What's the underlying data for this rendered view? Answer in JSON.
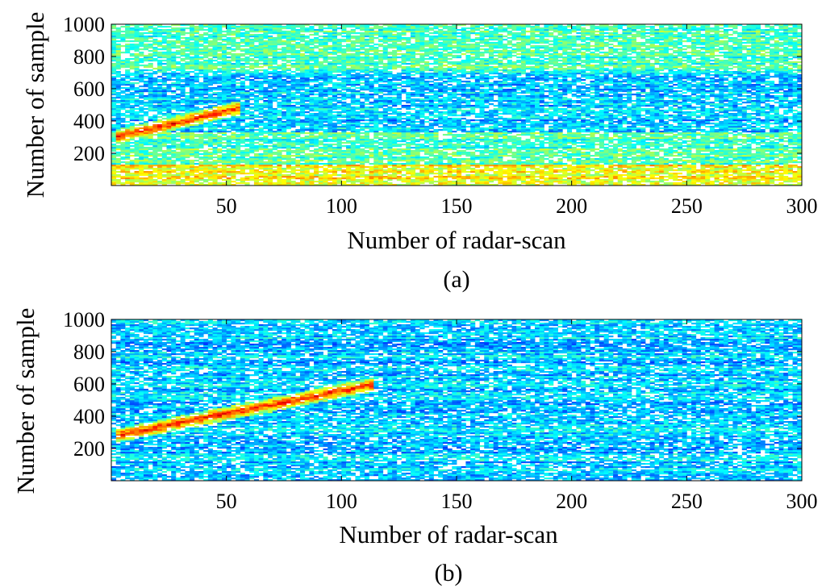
{
  "chart_data": [
    {
      "type": "heatmap",
      "panel": "(a)",
      "caption": "(a)",
      "xlabel": "Number of radar-scan",
      "ylabel": "Number of sample",
      "xlim": [
        0,
        300
      ],
      "ylim": [
        0,
        1000
      ],
      "xticks": [
        50,
        100,
        150,
        200,
        250,
        300
      ],
      "yticks": [
        200,
        400,
        600,
        800,
        1000
      ],
      "colormap": "jet",
      "background": "#ffffff",
      "features": [
        {
          "x_start": 0,
          "x_end": 300,
          "y_start": 0,
          "y_end": 130,
          "level": "high",
          "desc": "strong horizontal bands"
        },
        {
          "x_start": 0,
          "x_end": 300,
          "y_start": 130,
          "y_end": 330,
          "level": "medium"
        },
        {
          "x_start": 0,
          "x_end": 300,
          "y_start": 330,
          "y_end": 700,
          "level": "low"
        },
        {
          "x_start": 0,
          "x_end": 300,
          "y_start": 700,
          "y_end": 1000,
          "level": "medium"
        },
        {
          "x_start": 2,
          "x_end": 55,
          "y_start": 300,
          "y_end": 480,
          "level": "peak",
          "desc": "diagonal target track"
        }
      ]
    },
    {
      "type": "heatmap",
      "panel": "(b)",
      "caption": "(b)",
      "xlabel": "Number of radar-scan",
      "ylabel": "Number of sample",
      "xlim": [
        0,
        300
      ],
      "ylim": [
        0,
        1000
      ],
      "xticks": [
        50,
        100,
        150,
        200,
        250,
        300
      ],
      "yticks": [
        200,
        400,
        600,
        800,
        1000
      ],
      "colormap": "jet",
      "background": "#ffffff",
      "features": [
        {
          "x_start": 0,
          "x_end": 300,
          "y_start": 0,
          "y_end": 1000,
          "level": "low",
          "desc": "uniform cyan clutter"
        },
        {
          "x_start": 2,
          "x_end": 115,
          "y_start": 280,
          "y_end": 600,
          "level": "peak",
          "desc": "diagonal target track"
        }
      ]
    }
  ]
}
